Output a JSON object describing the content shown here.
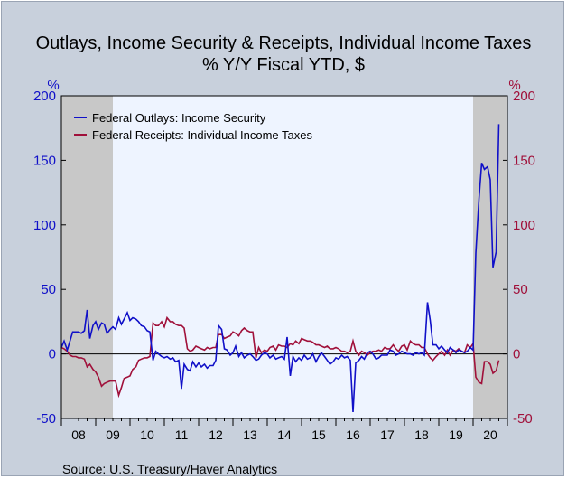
{
  "chart_data": {
    "type": "line",
    "title": "Outlays, Income Security & Receipts, Individual Income Taxes",
    "subtitle": "% Y/Y   Fiscal YTD, $",
    "left_unit": "%",
    "right_unit": "%",
    "ylim": [
      -50,
      200
    ],
    "yticks": [
      -50,
      0,
      50,
      100,
      150,
      200
    ],
    "xlim": [
      2008.0,
      2021.0
    ],
    "x_tick_labels": [
      "08",
      "09",
      "10",
      "11",
      "12",
      "13",
      "14",
      "15",
      "16",
      "17",
      "18",
      "19",
      "20"
    ],
    "recessions": [
      [
        2008.0,
        2009.5
      ],
      [
        2020.0,
        2021.0
      ]
    ],
    "legend_placement": "top-left",
    "source": "Source:  U.S. Treasury/Haver Analytics",
    "colors": {
      "outlays": "#1010c8",
      "receipts": "#a0103a",
      "recession": "#c8c8c8",
      "plot_bg": "#eef4ff"
    },
    "series": [
      {
        "name": "Federal Outlays: Income Security",
        "points": [
          [
            2008.0,
            5
          ],
          [
            2008.08,
            10
          ],
          [
            2008.17,
            3
          ],
          [
            2008.25,
            10
          ],
          [
            2008.33,
            17
          ],
          [
            2008.42,
            17
          ],
          [
            2008.5,
            17
          ],
          [
            2008.58,
            16
          ],
          [
            2008.67,
            18
          ],
          [
            2008.75,
            34
          ],
          [
            2008.83,
            12
          ],
          [
            2008.92,
            22
          ],
          [
            2009.0,
            25
          ],
          [
            2009.08,
            19
          ],
          [
            2009.17,
            24
          ],
          [
            2009.25,
            23
          ],
          [
            2009.33,
            16
          ],
          [
            2009.42,
            19
          ],
          [
            2009.5,
            21
          ],
          [
            2009.58,
            19
          ],
          [
            2009.67,
            28
          ],
          [
            2009.75,
            23
          ],
          [
            2009.83,
            27
          ],
          [
            2009.92,
            32
          ],
          [
            2010.0,
            26
          ],
          [
            2010.08,
            28
          ],
          [
            2010.17,
            27
          ],
          [
            2010.25,
            25
          ],
          [
            2010.33,
            22
          ],
          [
            2010.42,
            21
          ],
          [
            2010.5,
            18
          ],
          [
            2010.58,
            17
          ],
          [
            2010.67,
            -5
          ],
          [
            2010.75,
            2
          ],
          [
            2010.83,
            0
          ],
          [
            2010.92,
            -2
          ],
          [
            2011.0,
            -3
          ],
          [
            2011.08,
            -2
          ],
          [
            2011.17,
            -4
          ],
          [
            2011.25,
            -3
          ],
          [
            2011.33,
            -6
          ],
          [
            2011.42,
            -5
          ],
          [
            2011.5,
            -27
          ],
          [
            2011.58,
            -8
          ],
          [
            2011.67,
            -12
          ],
          [
            2011.75,
            -13
          ],
          [
            2011.83,
            -6
          ],
          [
            2011.92,
            -10
          ],
          [
            2012.0,
            -7
          ],
          [
            2012.08,
            -10
          ],
          [
            2012.17,
            -8
          ],
          [
            2012.25,
            -11
          ],
          [
            2012.33,
            -9
          ],
          [
            2012.42,
            -9
          ],
          [
            2012.5,
            -5
          ],
          [
            2012.58,
            22
          ],
          [
            2012.67,
            19
          ],
          [
            2012.75,
            4
          ],
          [
            2012.83,
            3
          ],
          [
            2012.92,
            -1
          ],
          [
            2013.0,
            1
          ],
          [
            2013.08,
            6
          ],
          [
            2013.17,
            -2
          ],
          [
            2013.25,
            1
          ],
          [
            2013.33,
            -3
          ],
          [
            2013.42,
            -1
          ],
          [
            2013.5,
            0
          ],
          [
            2013.58,
            -2
          ],
          [
            2013.67,
            -5
          ],
          [
            2013.75,
            -4
          ],
          [
            2013.83,
            -1
          ],
          [
            2013.92,
            1
          ],
          [
            2014.0,
            0
          ],
          [
            2014.08,
            -3
          ],
          [
            2014.17,
            -1
          ],
          [
            2014.25,
            -4
          ],
          [
            2014.33,
            -3
          ],
          [
            2014.42,
            -2
          ],
          [
            2014.5,
            -4
          ],
          [
            2014.58,
            13
          ],
          [
            2014.67,
            -17
          ],
          [
            2014.75,
            -2
          ],
          [
            2014.83,
            -6
          ],
          [
            2014.92,
            -3
          ],
          [
            2015.0,
            -5
          ],
          [
            2015.08,
            -1
          ],
          [
            2015.17,
            -4
          ],
          [
            2015.25,
            -3
          ],
          [
            2015.33,
            0
          ],
          [
            2015.42,
            -6
          ],
          [
            2015.5,
            -2
          ],
          [
            2015.58,
            1
          ],
          [
            2015.67,
            -2
          ],
          [
            2015.75,
            -5
          ],
          [
            2015.83,
            -8
          ],
          [
            2015.92,
            -6
          ],
          [
            2016.0,
            -3
          ],
          [
            2016.08,
            -4
          ],
          [
            2016.17,
            -1
          ],
          [
            2016.25,
            -3
          ],
          [
            2016.33,
            -2
          ],
          [
            2016.42,
            -5
          ],
          [
            2016.5,
            -45
          ],
          [
            2016.58,
            -7
          ],
          [
            2016.67,
            -5
          ],
          [
            2016.75,
            -2
          ],
          [
            2016.83,
            -4
          ],
          [
            2016.92,
            1
          ],
          [
            2017.0,
            2
          ],
          [
            2017.08,
            0
          ],
          [
            2017.17,
            -4
          ],
          [
            2017.25,
            -3
          ],
          [
            2017.33,
            -1
          ],
          [
            2017.42,
            -1
          ],
          [
            2017.5,
            -1
          ],
          [
            2017.58,
            3
          ],
          [
            2017.67,
            2
          ],
          [
            2017.75,
            -1
          ],
          [
            2017.83,
            0
          ],
          [
            2017.92,
            2
          ],
          [
            2018.0,
            1
          ],
          [
            2018.08,
            0
          ],
          [
            2018.17,
            0
          ],
          [
            2018.25,
            -1
          ],
          [
            2018.33,
            1
          ],
          [
            2018.42,
            0
          ],
          [
            2018.5,
            1
          ],
          [
            2018.58,
            -1
          ],
          [
            2018.67,
            40
          ],
          [
            2018.75,
            26
          ],
          [
            2018.83,
            7
          ],
          [
            2018.92,
            7
          ],
          [
            2019.0,
            4
          ],
          [
            2019.08,
            6
          ],
          [
            2019.17,
            3
          ],
          [
            2019.25,
            1
          ],
          [
            2019.33,
            5
          ],
          [
            2019.42,
            3
          ],
          [
            2019.5,
            1
          ],
          [
            2019.58,
            3
          ],
          [
            2019.67,
            2
          ],
          [
            2019.75,
            1
          ],
          [
            2019.83,
            2
          ],
          [
            2019.92,
            5
          ],
          [
            2020.0,
            3
          ],
          [
            2020.08,
            78
          ],
          [
            2020.17,
            120
          ],
          [
            2020.25,
            148
          ],
          [
            2020.33,
            143
          ],
          [
            2020.42,
            145
          ],
          [
            2020.5,
            135
          ],
          [
            2020.58,
            67
          ],
          [
            2020.67,
            79
          ],
          [
            2020.75,
            178
          ]
        ]
      },
      {
        "name": "Federal Receipts: Individual Income Taxes",
        "points": [
          [
            2008.0,
            5
          ],
          [
            2008.08,
            4
          ],
          [
            2008.17,
            2
          ],
          [
            2008.25,
            -1
          ],
          [
            2008.33,
            -2
          ],
          [
            2008.42,
            -2
          ],
          [
            2008.5,
            -3
          ],
          [
            2008.58,
            -3
          ],
          [
            2008.67,
            -4
          ],
          [
            2008.75,
            -10
          ],
          [
            2008.83,
            -8
          ],
          [
            2008.92,
            -12
          ],
          [
            2009.0,
            -14
          ],
          [
            2009.08,
            -18
          ],
          [
            2009.17,
            -25
          ],
          [
            2009.25,
            -23
          ],
          [
            2009.33,
            -22
          ],
          [
            2009.42,
            -21
          ],
          [
            2009.5,
            -21
          ],
          [
            2009.58,
            -21
          ],
          [
            2009.67,
            -32
          ],
          [
            2009.75,
            -26
          ],
          [
            2009.83,
            -19
          ],
          [
            2009.92,
            -18
          ],
          [
            2010.0,
            -17
          ],
          [
            2010.08,
            -12
          ],
          [
            2010.17,
            -10
          ],
          [
            2010.25,
            -5
          ],
          [
            2010.33,
            -4
          ],
          [
            2010.42,
            -3
          ],
          [
            2010.5,
            -3
          ],
          [
            2010.58,
            -2
          ],
          [
            2010.67,
            24
          ],
          [
            2010.75,
            22
          ],
          [
            2010.83,
            22
          ],
          [
            2010.92,
            25
          ],
          [
            2011.0,
            21
          ],
          [
            2011.08,
            28
          ],
          [
            2011.17,
            25
          ],
          [
            2011.25,
            25
          ],
          [
            2011.33,
            23
          ],
          [
            2011.42,
            22
          ],
          [
            2011.5,
            22
          ],
          [
            2011.58,
            20
          ],
          [
            2011.67,
            4
          ],
          [
            2011.75,
            2
          ],
          [
            2011.83,
            3
          ],
          [
            2011.92,
            6
          ],
          [
            2012.0,
            5
          ],
          [
            2012.08,
            4
          ],
          [
            2012.17,
            3
          ],
          [
            2012.25,
            5
          ],
          [
            2012.33,
            4
          ],
          [
            2012.42,
            5
          ],
          [
            2012.5,
            5
          ],
          [
            2012.58,
            15
          ],
          [
            2012.67,
            15
          ],
          [
            2012.75,
            12
          ],
          [
            2012.83,
            13
          ],
          [
            2012.92,
            14
          ],
          [
            2013.0,
            17
          ],
          [
            2013.08,
            16
          ],
          [
            2013.17,
            14
          ],
          [
            2013.25,
            18
          ],
          [
            2013.33,
            20
          ],
          [
            2013.42,
            18
          ],
          [
            2013.5,
            17
          ],
          [
            2013.58,
            17
          ],
          [
            2013.67,
            -3
          ],
          [
            2013.75,
            5
          ],
          [
            2013.83,
            1
          ],
          [
            2013.92,
            3
          ],
          [
            2014.0,
            2
          ],
          [
            2014.08,
            5
          ],
          [
            2014.17,
            6
          ],
          [
            2014.25,
            3
          ],
          [
            2014.33,
            7
          ],
          [
            2014.42,
            6
          ],
          [
            2014.5,
            6
          ],
          [
            2014.58,
            5
          ],
          [
            2014.67,
            8
          ],
          [
            2014.75,
            7
          ],
          [
            2014.83,
            10
          ],
          [
            2014.92,
            8
          ],
          [
            2015.0,
            12
          ],
          [
            2015.08,
            11
          ],
          [
            2015.17,
            10
          ],
          [
            2015.25,
            10
          ],
          [
            2015.33,
            9
          ],
          [
            2015.42,
            7
          ],
          [
            2015.5,
            7
          ],
          [
            2015.58,
            6
          ],
          [
            2015.67,
            5
          ],
          [
            2015.75,
            6
          ],
          [
            2015.83,
            4
          ],
          [
            2015.92,
            4
          ],
          [
            2016.0,
            5
          ],
          [
            2016.08,
            4
          ],
          [
            2016.17,
            2
          ],
          [
            2016.25,
            2
          ],
          [
            2016.33,
            1
          ],
          [
            2016.42,
            2
          ],
          [
            2016.5,
            10
          ],
          [
            2016.58,
            2
          ],
          [
            2016.67,
            -1
          ],
          [
            2016.75,
            2
          ],
          [
            2016.83,
            1
          ],
          [
            2016.92,
            -1
          ],
          [
            2017.0,
            1
          ],
          [
            2017.08,
            2
          ],
          [
            2017.17,
            2
          ],
          [
            2017.25,
            3
          ],
          [
            2017.33,
            2
          ],
          [
            2017.42,
            5
          ],
          [
            2017.5,
            4
          ],
          [
            2017.58,
            4
          ],
          [
            2017.67,
            7
          ],
          [
            2017.75,
            4
          ],
          [
            2017.83,
            2
          ],
          [
            2017.92,
            6
          ],
          [
            2018.0,
            7
          ],
          [
            2018.08,
            3
          ],
          [
            2018.17,
            10
          ],
          [
            2018.25,
            8
          ],
          [
            2018.33,
            7
          ],
          [
            2018.42,
            7
          ],
          [
            2018.5,
            5
          ],
          [
            2018.58,
            5
          ],
          [
            2018.67,
            0
          ],
          [
            2018.75,
            -3
          ],
          [
            2018.83,
            -5
          ],
          [
            2018.92,
            -2
          ],
          [
            2019.0,
            0
          ],
          [
            2019.08,
            2
          ],
          [
            2019.17,
            -1
          ],
          [
            2019.25,
            3
          ],
          [
            2019.33,
            -1
          ],
          [
            2019.42,
            3
          ],
          [
            2019.5,
            2
          ],
          [
            2019.58,
            4
          ],
          [
            2019.67,
            2
          ],
          [
            2019.75,
            1
          ],
          [
            2019.83,
            7
          ],
          [
            2019.92,
            5
          ],
          [
            2020.0,
            8
          ],
          [
            2020.08,
            -18
          ],
          [
            2020.17,
            -22
          ],
          [
            2020.25,
            -23
          ],
          [
            2020.33,
            -6
          ],
          [
            2020.42,
            -6
          ],
          [
            2020.5,
            -8
          ],
          [
            2020.58,
            -15
          ],
          [
            2020.67,
            -13
          ],
          [
            2020.75,
            -5
          ]
        ]
      }
    ]
  }
}
